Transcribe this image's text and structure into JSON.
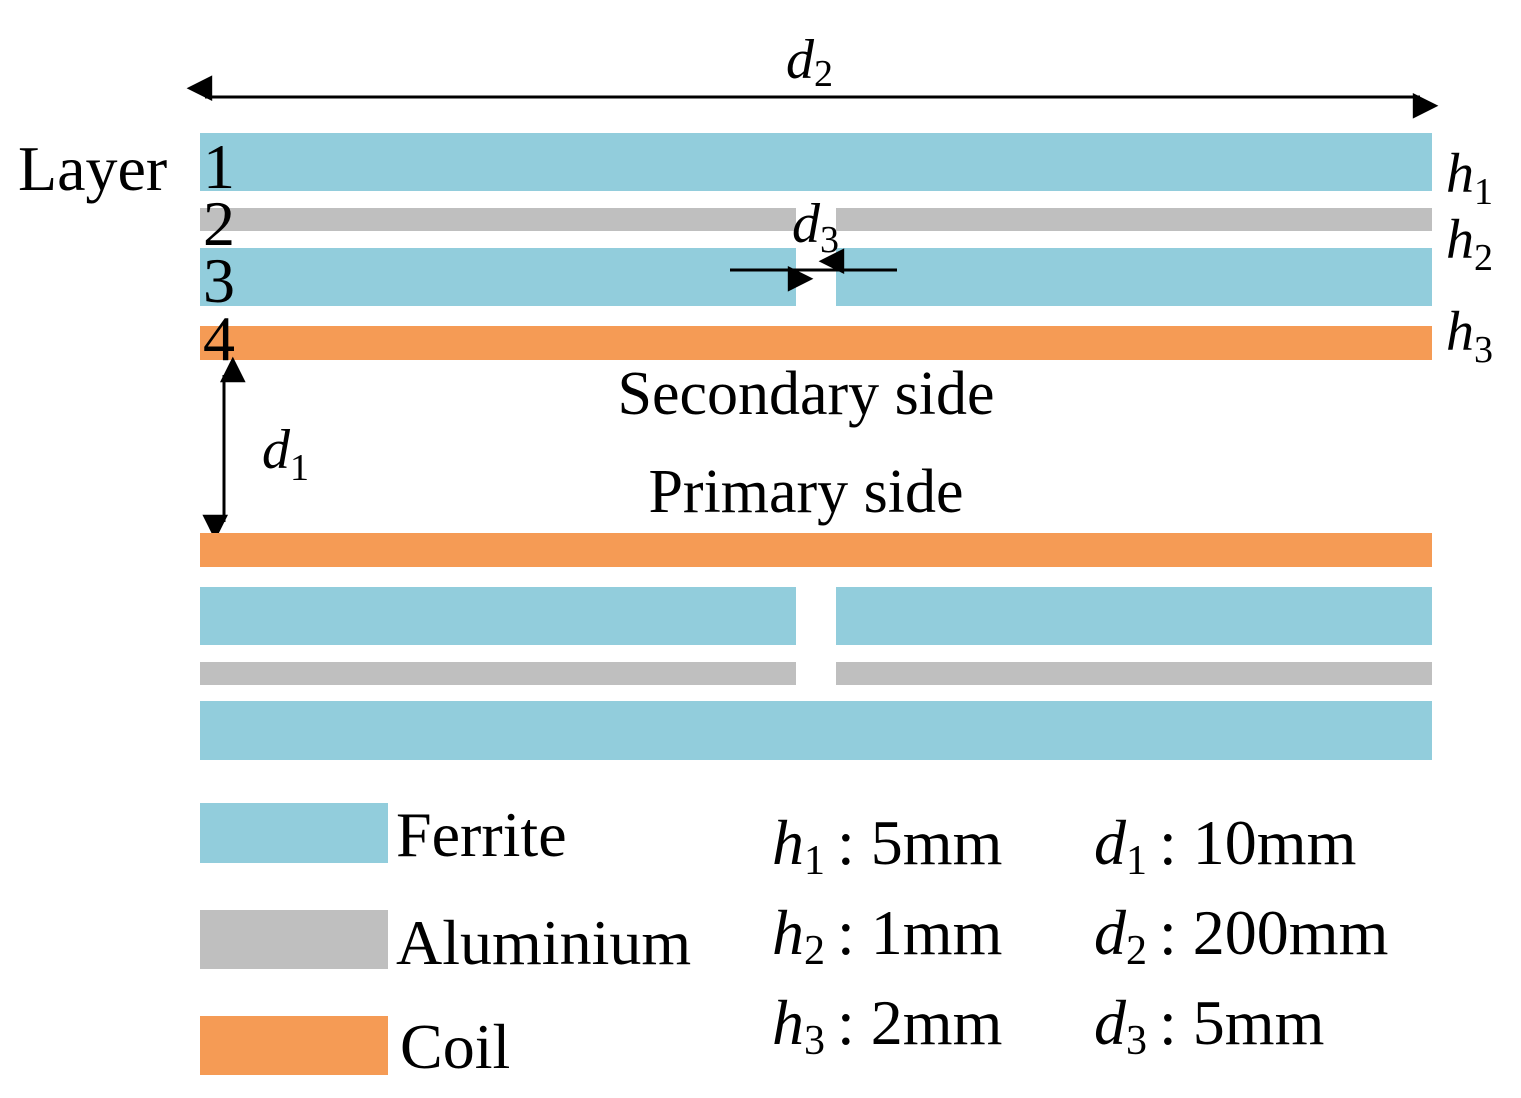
{
  "colors": {
    "ferrite": "#92CDDC",
    "aluminium": "#BFBFBF",
    "coil": "#F59B55"
  },
  "layer_label": "Layer",
  "layer_numbers": [
    "1",
    "2",
    "3",
    "4"
  ],
  "dims": {
    "d2": {
      "sym": "d",
      "sub": "2"
    },
    "d3": {
      "sym": "d",
      "sub": "3"
    },
    "d1": {
      "sym": "d",
      "sub": "1"
    },
    "h1": {
      "sym": "h",
      "sub": "1"
    },
    "h2": {
      "sym": "h",
      "sub": "2"
    },
    "h3": {
      "sym": "h",
      "sub": "3"
    }
  },
  "sides": {
    "secondary": "Secondary side",
    "primary": "Primary side"
  },
  "legend": [
    {
      "label": "Ferrite"
    },
    {
      "label": "Aluminium"
    },
    {
      "label": "Coil"
    }
  ],
  "params": [
    {
      "sym": "h",
      "sub": "1",
      "value": ": 5mm"
    },
    {
      "sym": "h",
      "sub": "2",
      "value": ": 1mm"
    },
    {
      "sym": "h",
      "sub": "3",
      "value": ": 2mm"
    },
    {
      "sym": "d",
      "sub": "1",
      "value": ": 10mm"
    },
    {
      "sym": "d",
      "sub": "2",
      "value": ": 200mm"
    },
    {
      "sym": "d",
      "sub": "3",
      "value": ": 5mm"
    }
  ]
}
